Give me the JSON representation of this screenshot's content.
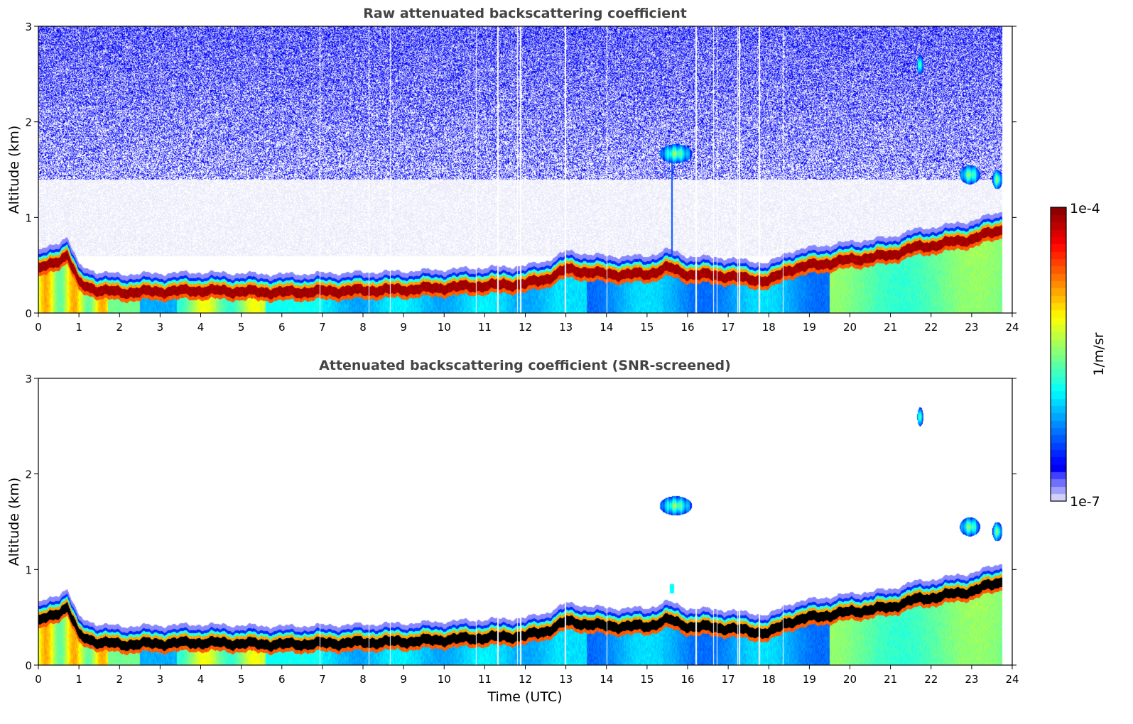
{
  "chart_data": [
    {
      "type": "heatmap",
      "title": "Raw attenuated backscattering coefficient",
      "xlabel": "",
      "ylabel": "Altitude (km)",
      "xlim": [
        0,
        24
      ],
      "ylim": [
        0,
        3
      ],
      "xticks": [
        "0",
        "1",
        "2",
        "3",
        "4",
        "5",
        "6",
        "7",
        "8",
        "9",
        "10",
        "11",
        "12",
        "13",
        "14",
        "15",
        "16",
        "17",
        "18",
        "19",
        "20",
        "21",
        "22",
        "23",
        "24"
      ],
      "yticks": [
        "0",
        "1",
        "2",
        "3"
      ],
      "data_end_time": 23.75,
      "layer_top_km": {
        "time": [
          0,
          0.5,
          0.7,
          1.0,
          1.5,
          2,
          3,
          4,
          5,
          6,
          7,
          8,
          9,
          10,
          11,
          12,
          12.5,
          13,
          14,
          15,
          15.5,
          16,
          17,
          17.5,
          18,
          18.5,
          19,
          20,
          21,
          21.5,
          22,
          23,
          23.75
        ],
        "altitude": [
          0.6,
          0.7,
          0.75,
          0.45,
          0.38,
          0.36,
          0.37,
          0.38,
          0.37,
          0.36,
          0.37,
          0.38,
          0.39,
          0.41,
          0.43,
          0.45,
          0.5,
          0.6,
          0.55,
          0.55,
          0.62,
          0.55,
          0.53,
          0.5,
          0.48,
          0.6,
          0.64,
          0.7,
          0.75,
          0.82,
          0.85,
          0.92,
          1.02
        ]
      },
      "features": [
        {
          "name": "cloud",
          "time_range": [
            15.3,
            16.1
          ],
          "altitude_km": 1.67
        },
        {
          "name": "cloud",
          "time_range": [
            22.7,
            23.2
          ],
          "altitude_km": 1.45
        },
        {
          "name": "cloud",
          "time_range": [
            23.5,
            23.75
          ],
          "altitude_km": 1.4
        },
        {
          "name": "cloud",
          "time_range": [
            21.65,
            21.8
          ],
          "altitude_km": 2.6
        },
        {
          "name": "precipitation-streak",
          "time": 15.6,
          "altitude_range_km": [
            0.55,
            1.6
          ]
        }
      ],
      "noise_above_km": 1.4
    },
    {
      "type": "heatmap",
      "title": "Attenuated backscattering coefficient (SNR-screened)",
      "xlabel": "Time (UTC)",
      "ylabel": "Altitude (km)",
      "xlim": [
        0,
        24
      ],
      "ylim": [
        0,
        3
      ],
      "xticks": [
        "0",
        "1",
        "2",
        "3",
        "4",
        "5",
        "6",
        "7",
        "8",
        "9",
        "10",
        "11",
        "12",
        "13",
        "14",
        "15",
        "16",
        "17",
        "18",
        "19",
        "20",
        "21",
        "22",
        "23",
        "24"
      ],
      "yticks": [
        "0",
        "1",
        "2",
        "3"
      ],
      "screened": true
    }
  ],
  "colorbar": {
    "label": "1/m/sr",
    "max_label": "1e-4",
    "min_label": "1e-7",
    "scale": "log",
    "range": [
      1e-07,
      0.0001
    ],
    "colormap": "jet"
  },
  "colors": {
    "title_color": "#444444",
    "screened_color": "#000000"
  }
}
